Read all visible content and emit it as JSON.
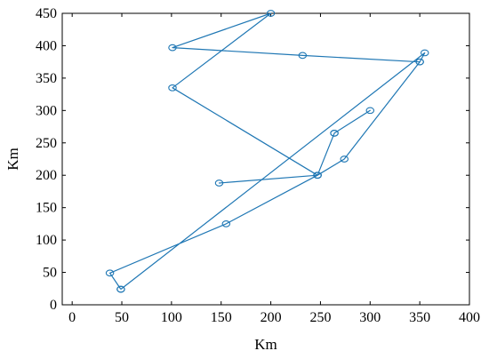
{
  "chart_data": {
    "type": "line",
    "title": "",
    "xlabel": "Km",
    "ylabel": "Km",
    "xlim": [
      -10,
      400
    ],
    "ylim": [
      0,
      450
    ],
    "xticks": [
      0,
      50,
      100,
      150,
      200,
      250,
      300,
      350,
      400
    ],
    "yticks": [
      0,
      50,
      100,
      150,
      200,
      250,
      300,
      350,
      400,
      450
    ],
    "grid": false,
    "marker": "circle",
    "line_color": "#1f77b4",
    "series": [
      {
        "x": [
          49,
          355,
          350,
          274,
          247,
          155,
          38,
          49
        ],
        "y": [
          24,
          389,
          375,
          225,
          200,
          125,
          49,
          24
        ]
      },
      {
        "x": [
          350,
          232,
          101,
          200,
          101,
          247,
          148,
          247,
          264,
          300,
          264
        ],
        "y": [
          375,
          385,
          397,
          450,
          335,
          200,
          188,
          200,
          265,
          300,
          265
        ]
      }
    ]
  }
}
